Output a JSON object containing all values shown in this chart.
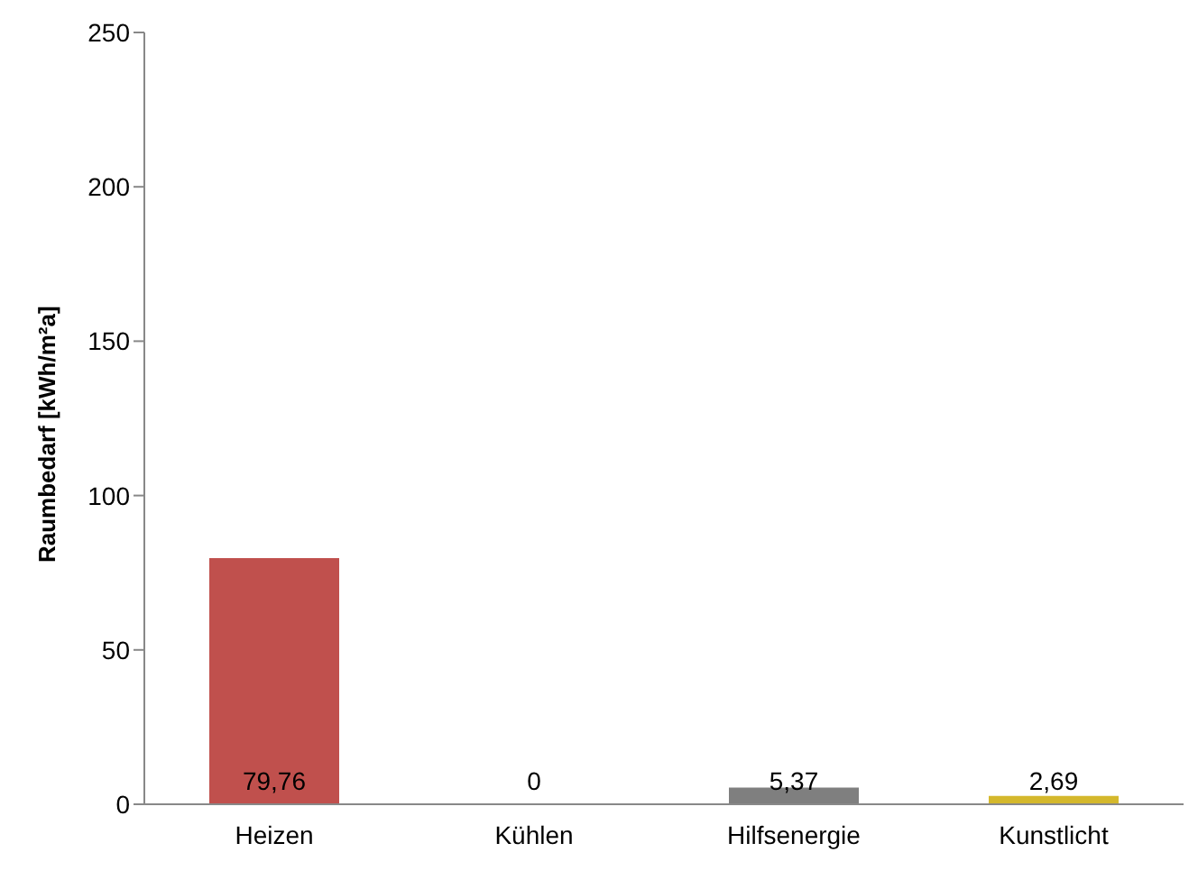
{
  "chart_data": {
    "type": "bar",
    "ylabel": "Raumbedarf  [kWh/m²a]",
    "categories": [
      "Heizen",
      "Kühlen",
      "Hilfsenergie",
      "Kunstlicht"
    ],
    "values": [
      79.76,
      0,
      5.37,
      2.69
    ],
    "colors": [
      "#c0504d",
      "#4f81bd",
      "#7f7f7f",
      "#d4b82c"
    ],
    "value_labels": [
      "79,76",
      "0",
      "5,37",
      "2,69"
    ],
    "ylim": [
      0,
      250
    ],
    "yticks": [
      0,
      50,
      100,
      150,
      200,
      250
    ],
    "legend": false
  }
}
